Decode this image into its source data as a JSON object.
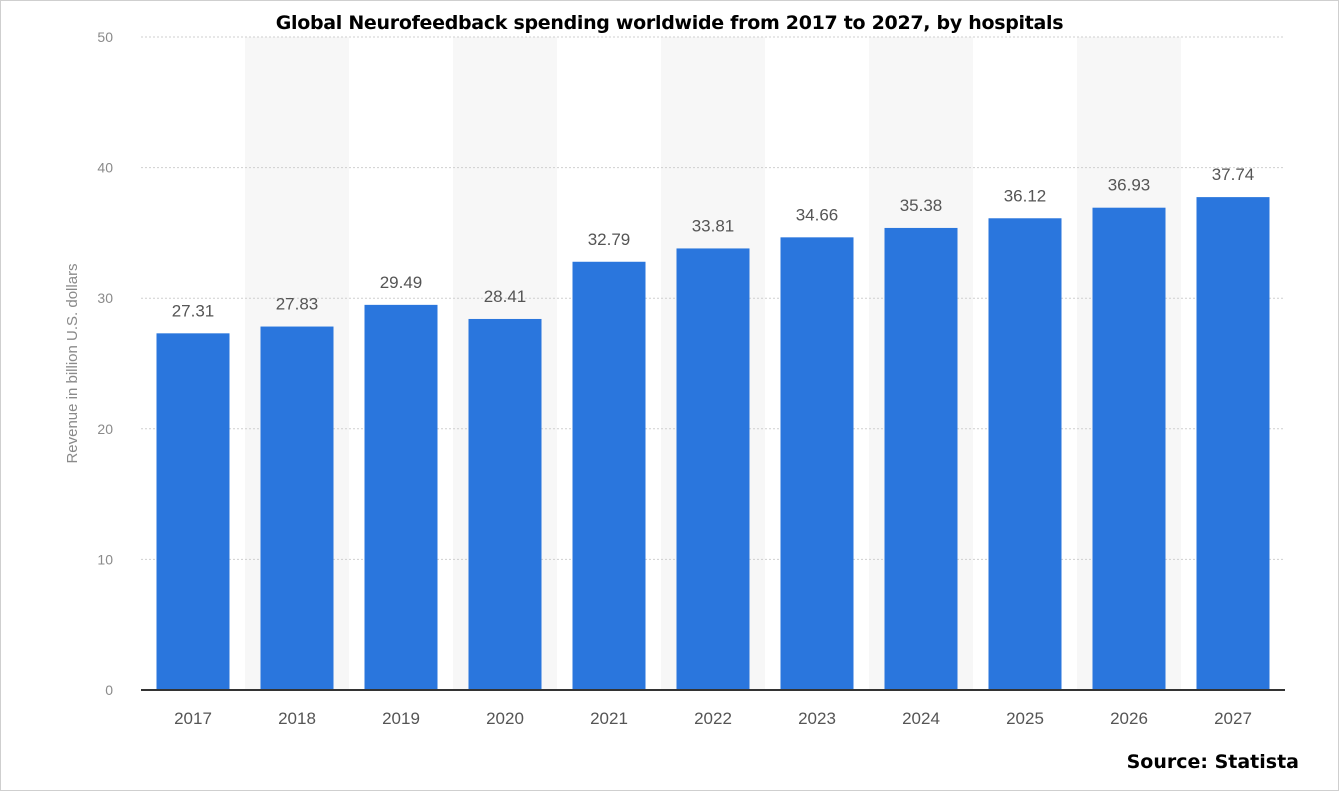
{
  "chart_data": {
    "type": "bar",
    "title": "Global Neurofeedback spending worldwide from 2017 to 2027, by hospitals",
    "source": "Source: Statista",
    "xlabel": "",
    "ylabel": "Revenue in billion U.S. dollars",
    "categories": [
      "2017",
      "2018",
      "2019",
      "2020",
      "2021",
      "2022",
      "2023",
      "2024",
      "2025",
      "2026",
      "2027"
    ],
    "values": [
      27.31,
      27.83,
      29.49,
      28.41,
      32.79,
      33.81,
      34.66,
      35.38,
      36.12,
      36.93,
      37.74
    ],
    "value_labels": [
      "27.31",
      "27.83",
      "29.49",
      "28.41",
      "32.79",
      "33.81",
      "34.66",
      "35.38",
      "36.12",
      "36.93",
      "37.74"
    ],
    "ylim": [
      0,
      50
    ],
    "yticks": [
      "0",
      "10",
      "20",
      "30",
      "40",
      "50"
    ],
    "ytick_values": [
      0,
      10,
      20,
      30,
      40,
      50
    ],
    "grid": true,
    "legend": "none",
    "colors": {
      "bar": "#2a76dd",
      "band": "#f7f7f7",
      "grid": "#cfcfcf",
      "axis": "#333333"
    }
  }
}
